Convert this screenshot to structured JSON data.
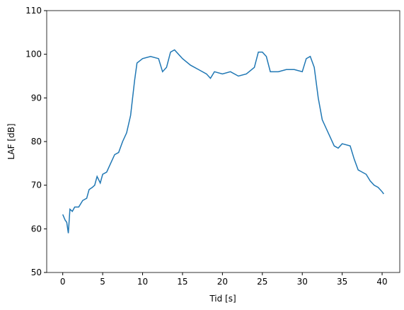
{
  "chart_data": {
    "type": "line",
    "x_label": "Tid [s]",
    "y_label": "LAF [dB]",
    "x": [
      0,
      0.3,
      0.5,
      0.7,
      0.9,
      1.2,
      1.5,
      2,
      2.5,
      3,
      3.3,
      3.7,
      4,
      4.3,
      4.7,
      5,
      5.5,
      6,
      6.5,
      7,
      7.5,
      8,
      8.5,
      9,
      9.3,
      10,
      11,
      12,
      12.5,
      13,
      13.5,
      14,
      15,
      16,
      17,
      18,
      18.5,
      19,
      20,
      21,
      22,
      23,
      24,
      24.5,
      25,
      25.5,
      26,
      27,
      28,
      29,
      30,
      30.5,
      31,
      31.5,
      32,
      32.5,
      33,
      33.5,
      34,
      34.5,
      35,
      36,
      36.5,
      37,
      38,
      38.5,
      39,
      39.5,
      40,
      40.2
    ],
    "series": [
      {
        "color": "#1f77b4",
        "values": [
          63.3,
          62,
          61.5,
          59,
          64.5,
          64,
          65,
          65,
          66.5,
          67,
          69,
          69.5,
          70,
          72,
          70.5,
          72.5,
          73,
          75,
          77,
          77.5,
          80,
          82,
          86,
          94,
          98,
          99,
          99.5,
          99,
          96,
          97,
          100.5,
          101,
          99,
          97.5,
          96.5,
          95.5,
          94.5,
          96,
          95.5,
          96,
          95,
          95.5,
          97,
          100.5,
          100.5,
          99.5,
          96,
          96,
          96.5,
          96.5,
          96,
          99,
          99.5,
          97,
          90,
          85,
          83,
          81,
          79,
          78.5,
          79.5,
          79,
          76,
          73.5,
          72.5,
          71,
          70,
          69.5,
          68.5,
          68
        ]
      }
    ],
    "xlim": [
      -2.01,
      42.21
    ],
    "ylim": [
      50,
      110
    ],
    "xticks": [
      0,
      5,
      10,
      15,
      20,
      25,
      30,
      35,
      40
    ],
    "yticks": [
      50,
      60,
      70,
      80,
      90,
      100,
      110
    ]
  }
}
